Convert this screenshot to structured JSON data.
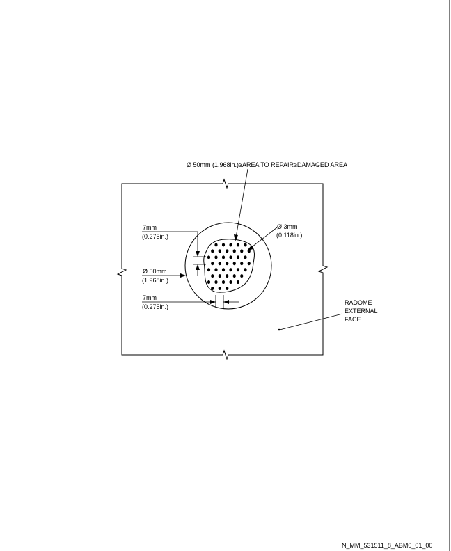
{
  "labels": {
    "top_note": "Ø 50mm (1.968in.)≥AREA TO REPAIR≥DAMAGED AREA",
    "dim_7mm_top_line1": "7mm",
    "dim_7mm_top_line2": "(0.275in.)",
    "dim_50mm_line1": "Ø 50mm",
    "dim_50mm_line2": "(1.968in.)",
    "dim_7mm_bottom_line1": "7mm",
    "dim_7mm_bottom_line2": "(0.275in.)",
    "dim_3mm_line1": "Ø 3mm",
    "dim_3mm_line2": "(0.118in.)",
    "radome_line1": "RADOME",
    "radome_line2": "EXTERNAL",
    "radome_line3": "FACE"
  },
  "reference_code": "N_MM_531511_8_ABM0_01_00"
}
